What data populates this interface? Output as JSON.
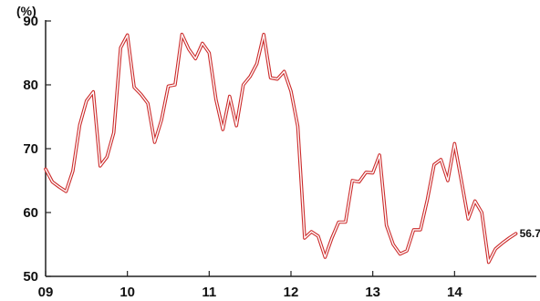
{
  "chart_data": {
    "type": "line",
    "title": "",
    "unit_label": "(%)",
    "xlabel": "",
    "ylabel": "",
    "y_ticks": [
      "50",
      "60",
      "70",
      "80",
      "90"
    ],
    "x_ticks": [
      "09",
      "10",
      "11",
      "12",
      "13",
      "14"
    ],
    "ylim": [
      50,
      90
    ],
    "xlim": [
      2009.0,
      2015.0
    ],
    "grid": false,
    "legend": "none",
    "line_color": "#cc2b2b",
    "line_fill_color": "#ffffff",
    "end_label": "56.7",
    "series": [
      {
        "x": [
          2009.0,
          2009.083,
          2009.167,
          2009.25,
          2009.333,
          2009.417,
          2009.5,
          2009.583,
          2009.667,
          2009.75,
          2009.833,
          2009.917,
          2010.0,
          2010.083,
          2010.167,
          2010.25,
          2010.333,
          2010.417,
          2010.5,
          2010.583,
          2010.667,
          2010.75,
          2010.833,
          2010.917,
          2011.0,
          2011.083,
          2011.167,
          2011.25,
          2011.333,
          2011.417,
          2011.5,
          2011.583,
          2011.667,
          2011.75,
          2011.833,
          2011.917,
          2012.0,
          2012.083,
          2012.167,
          2012.25,
          2012.333,
          2012.417,
          2012.5,
          2012.583,
          2012.667,
          2012.75,
          2012.833,
          2012.917,
          2013.0,
          2013.083,
          2013.167,
          2013.25,
          2013.333,
          2013.417,
          2013.5,
          2013.583,
          2013.667,
          2013.75,
          2013.833,
          2013.917,
          2014.0,
          2014.083,
          2014.167,
          2014.25,
          2014.333,
          2014.417,
          2014.5,
          2014.583,
          2014.667,
          2014.75
        ],
        "values": [
          66.8,
          64.8,
          64.0,
          63.3,
          66.5,
          73.7,
          77.5,
          78.9,
          67.3,
          68.7,
          72.5,
          85.8,
          87.8,
          79.6,
          78.5,
          77.1,
          71.0,
          74.5,
          79.8,
          80.0,
          87.9,
          85.6,
          84.1,
          86.5,
          85.0,
          77.7,
          73.0,
          78.2,
          73.6,
          80.0,
          81.3,
          83.3,
          87.9,
          81.1,
          80.9,
          82.1,
          79.0,
          73.5,
          56.0,
          57.0,
          56.3,
          53.0,
          56.0,
          58.5,
          58.5,
          65.0,
          64.8,
          66.3,
          66.2,
          69.0,
          58.0,
          55.0,
          53.5,
          54.0,
          57.3,
          57.3,
          62.0,
          67.5,
          68.3,
          65.0,
          70.8,
          65.0,
          59.0,
          61.8,
          60.0,
          52.2,
          54.3,
          55.2,
          56.0,
          56.7
        ]
      }
    ]
  }
}
